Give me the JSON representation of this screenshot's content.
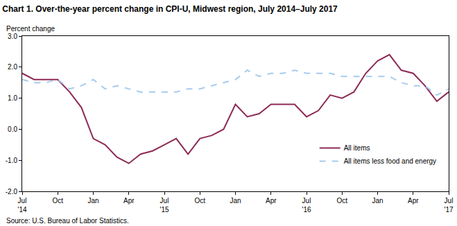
{
  "chart_data": {
    "type": "line",
    "title": "Chart 1. Over-the-year percent change in CPI-U, Midwest region, July 2014–July 2017",
    "ylabel": "Percent change",
    "source": "Source: U.S. Bureau of Labor Statistics.",
    "categories": [
      "Jul\n'14",
      null,
      null,
      "Oct",
      null,
      null,
      "Jan",
      null,
      null,
      "Apr",
      null,
      null,
      "Jul\n'15",
      null,
      null,
      "Oct",
      null,
      null,
      "Jan",
      null,
      null,
      "Apr",
      null,
      null,
      "Jul\n'16",
      null,
      null,
      "Oct",
      null,
      null,
      "Jan",
      null,
      null,
      "Apr",
      null,
      null,
      "Jul\n'17"
    ],
    "series": [
      {
        "name": "All items",
        "color": "#8e2a56",
        "line_style": "solid",
        "values": [
          1.8,
          1.6,
          1.6,
          1.6,
          1.2,
          0.7,
          -0.3,
          -0.5,
          -0.9,
          -1.1,
          -0.8,
          -0.7,
          -0.5,
          -0.3,
          -0.8,
          -0.3,
          -0.2,
          0.0,
          0.8,
          0.4,
          0.5,
          0.8,
          0.8,
          0.8,
          0.4,
          0.6,
          1.1,
          1.0,
          1.2,
          1.8,
          2.2,
          2.4,
          1.9,
          1.8,
          1.4,
          0.9,
          1.2
        ]
      },
      {
        "name": "All items less food and energy",
        "color": "#a6cbee",
        "line_style": "dashed",
        "values": [
          1.6,
          1.5,
          1.5,
          1.6,
          1.3,
          1.4,
          1.6,
          1.3,
          1.4,
          1.3,
          1.2,
          1.2,
          1.2,
          1.2,
          1.3,
          1.3,
          1.4,
          1.5,
          1.6,
          1.9,
          1.7,
          1.8,
          1.8,
          1.9,
          1.8,
          1.8,
          1.8,
          1.7,
          1.7,
          1.7,
          1.7,
          1.7,
          1.5,
          1.4,
          1.4,
          1.1,
          1.3
        ]
      }
    ],
    "ylim": [
      -2,
      3
    ],
    "yticks": [
      {
        "value": -2,
        "label": "-2.0"
      },
      {
        "value": -1,
        "label": "-1.0"
      },
      {
        "value": 0,
        "label": "0.0"
      },
      {
        "value": 1,
        "label": "1.0"
      },
      {
        "value": 2,
        "label": "2.0"
      },
      {
        "value": 3,
        "label": "3.0"
      }
    ],
    "grid": false,
    "legend": "lower right"
  }
}
